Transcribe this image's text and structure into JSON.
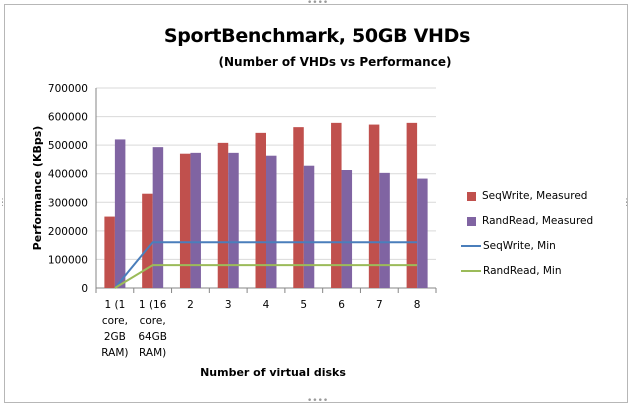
{
  "chart_data": {
    "type": "bar",
    "title": "SportBenchmark, 50GB VHDs",
    "subtitle": "(Number of VHDs vs Performance)",
    "xlabel": "Number of virtual disks",
    "ylabel": "Performance (KBps)",
    "ylim": [
      0,
      700000
    ],
    "yticks": [
      "700000",
      "600000",
      "500000",
      "400000",
      "300000",
      "200000",
      "100000",
      "0"
    ],
    "ytick_values": [
      700000,
      600000,
      500000,
      400000,
      300000,
      200000,
      100000,
      0
    ],
    "grid": true,
    "legend_position": "right",
    "categories": [
      [
        "1 (1",
        "core,",
        "2GB",
        "RAM)"
      ],
      [
        "1 (16",
        "core,",
        "64GB",
        "RAM)"
      ],
      [
        "2"
      ],
      [
        "3"
      ],
      [
        "4"
      ],
      [
        "5"
      ],
      [
        "6"
      ],
      [
        "7"
      ],
      [
        "8"
      ]
    ],
    "series": [
      {
        "name": "SeqWrite, Measured",
        "kind": "bar",
        "color": "#c0504d",
        "values": [
          250000,
          330000,
          470000,
          508000,
          543000,
          563000,
          578000,
          572000,
          578000
        ]
      },
      {
        "name": "RandRead, Measured",
        "kind": "bar",
        "color": "#8064a2",
        "values": [
          520000,
          493000,
          473000,
          473000,
          463000,
          428000,
          413000,
          403000,
          383000
        ]
      },
      {
        "name": "SeqWrite, Min",
        "kind": "line",
        "color": "#4a7ebb",
        "values": [
          0,
          160000,
          160000,
          160000,
          160000,
          160000,
          160000,
          160000,
          160000
        ]
      },
      {
        "name": "RandRead, Min",
        "kind": "line",
        "color": "#9bbb59",
        "values": [
          0,
          80000,
          80000,
          80000,
          80000,
          80000,
          80000,
          80000,
          80000
        ]
      }
    ]
  }
}
